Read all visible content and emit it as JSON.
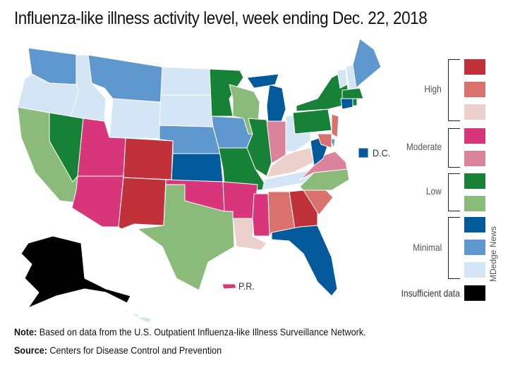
{
  "title": "Influenza-like illness activity level, week ending Dec. 22, 2018",
  "legend": {
    "groups": [
      {
        "label": "High",
        "levels": [
          "#c0313a",
          "#d9716c",
          "#ecd0cb"
        ]
      },
      {
        "label": "Moderate",
        "levels": [
          "#d9357a",
          "#dc839c"
        ]
      },
      {
        "label": "Low",
        "levels": [
          "#178237",
          "#8bbb7b"
        ]
      },
      {
        "label": "Minimal",
        "levels": [
          "#035a9b",
          "#5e98cf",
          "#d4e5f5"
        ]
      }
    ],
    "insufficient": {
      "label": "Insufficient data",
      "color": "#000000"
    }
  },
  "states": {
    "WA": "#5e98cf",
    "OR": "#d4e5f5",
    "CA": "#8bbb7b",
    "NV": "#178237",
    "ID": "#d4e5f5",
    "MT": "#5e98cf",
    "WY": "#d4e5f5",
    "UT": "#d9357a",
    "AZ": "#d9357a",
    "CO": "#c0313a",
    "NM": "#c0313a",
    "ND": "#d4e5f5",
    "SD": "#d4e5f5",
    "NE": "#5e98cf",
    "KS": "#035a9b",
    "OK": "#d9357a",
    "TX": "#8bbb7b",
    "MN": "#178237",
    "IA": "#5e98cf",
    "MO": "#178237",
    "AR": "#d9357a",
    "LA": "#ecd0cb",
    "WI": "#8bbb7b",
    "IL": "#178237",
    "MI": "#035a9b",
    "IN": "#dc839c",
    "OH": "#d4e5f5",
    "KY": "#ecd0cb",
    "TN": "#d4e5f5",
    "MS": "#d9357a",
    "AL": "#d9716c",
    "GA": "#c0313a",
    "FL": "#035a9b",
    "SC": "#d9716c",
    "NC": "#8bbb7b",
    "VA": "#dc839c",
    "WV": "#035a9b",
    "PA": "#178237",
    "NY": "#178237",
    "VT": "#d4e5f5",
    "NH": "#d4e5f5",
    "ME": "#5e98cf",
    "MA": "#178237",
    "CT": "#035a9b",
    "RI": "#178237",
    "NJ": "#d9716c",
    "DE": "#5e98cf",
    "MD": "#d9716c",
    "DC": "#035a9b",
    "AK": "#000000",
    "HI": "#d4e5f5",
    "PR": "#d9357a"
  },
  "map_labels": {
    "dc": "D.C.",
    "pr": "P.R."
  },
  "credit": "MDedge News",
  "footer": {
    "note_label": "Note:",
    "note": " Based on data from the U.S. Outpatient Influenza-like Illness Surveillance Network.",
    "source_label": "Source:",
    "source": " Centers for Disease Control and Prevention"
  }
}
